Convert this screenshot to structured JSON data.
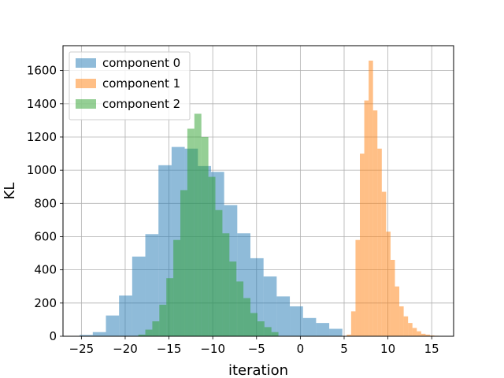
{
  "chart_data": {
    "type": "bar",
    "subtype": "overlapping-histogram",
    "title": "",
    "xlabel": "iteration",
    "ylabel": "KL",
    "xlim": [
      -27.1,
      17.5
    ],
    "ylim": [
      0,
      1750
    ],
    "xticks": [
      -25,
      -20,
      -15,
      -10,
      -5,
      0,
      5,
      10,
      15
    ],
    "yticks": [
      0,
      200,
      400,
      600,
      800,
      1000,
      1200,
      1400,
      1600
    ],
    "grid": true,
    "legend_position": "upper-left",
    "series": [
      {
        "name": "component 0",
        "color": "#1f77b4",
        "alpha": 0.5,
        "bin_edges": [
          -25.2,
          -23.7,
          -22.2,
          -20.7,
          -19.2,
          -17.7,
          -16.2,
          -14.7,
          -13.2,
          -11.7,
          -10.2,
          -8.7,
          -7.2,
          -5.7,
          -4.2,
          -2.7,
          -1.2,
          0.3,
          1.8,
          3.3,
          4.8
        ],
        "counts": [
          8,
          25,
          125,
          245,
          480,
          615,
          1030,
          1140,
          1130,
          1025,
          990,
          790,
          620,
          470,
          360,
          240,
          180,
          110,
          80,
          45
        ]
      },
      {
        "name": "component 1",
        "color": "#ff7f0e",
        "alpha": 0.5,
        "bin_edges": [
          5.3,
          5.8,
          6.3,
          6.8,
          7.3,
          7.8,
          8.3,
          8.8,
          9.3,
          9.8,
          10.3,
          10.8,
          11.3,
          11.8,
          12.3,
          12.8,
          13.3,
          13.8,
          14.3,
          14.8,
          15.3,
          15.8
        ],
        "counts": [
          10,
          150,
          580,
          1100,
          1420,
          1660,
          1360,
          1130,
          870,
          630,
          460,
          300,
          180,
          120,
          80,
          50,
          30,
          15,
          10,
          5,
          3
        ]
      },
      {
        "name": "component 2",
        "color": "#2ca02c",
        "alpha": 0.5,
        "bin_edges": [
          -18.5,
          -17.7,
          -16.9,
          -16.1,
          -15.3,
          -14.5,
          -13.7,
          -12.9,
          -12.1,
          -11.3,
          -10.5,
          -9.7,
          -8.9,
          -8.1,
          -7.3,
          -6.5,
          -5.7,
          -4.9,
          -4.1,
          -3.3,
          -2.5
        ],
        "counts": [
          10,
          40,
          90,
          190,
          350,
          580,
          880,
          1250,
          1340,
          1200,
          960,
          760,
          620,
          450,
          330,
          230,
          140,
          90,
          55,
          25
        ]
      }
    ]
  }
}
